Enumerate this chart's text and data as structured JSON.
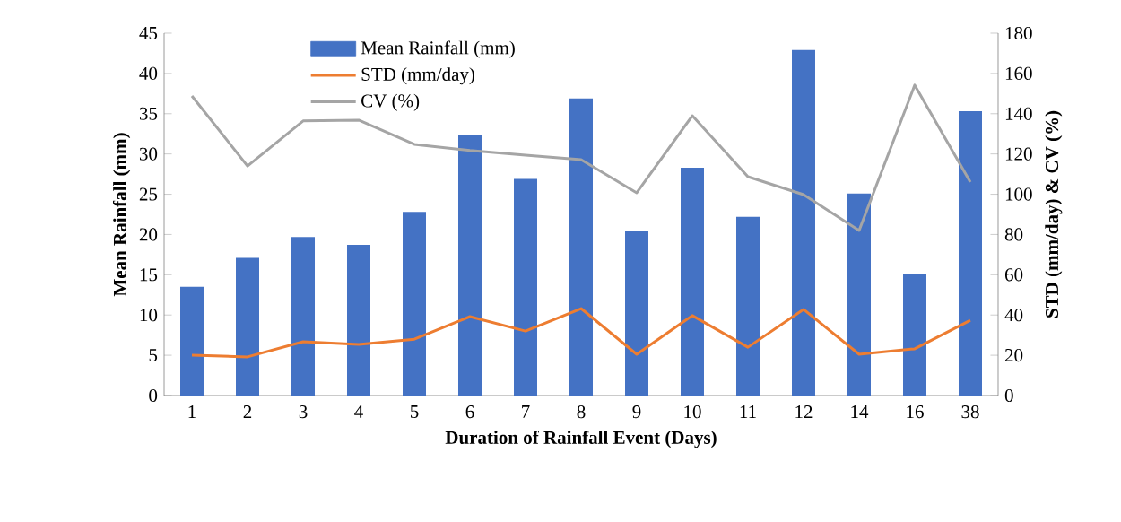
{
  "chart_data": {
    "type": "bar",
    "xlabel": "Duration of Rainfall Event (Days)",
    "ylabel": "Mean Rainfall (mm)",
    "y2label": "STD (mm/day) & CV (%)",
    "categories": [
      "1",
      "2",
      "3",
      "4",
      "5",
      "6",
      "7",
      "8",
      "9",
      "10",
      "11",
      "12",
      "14",
      "16",
      "38"
    ],
    "series": [
      {
        "name": "Mean Rainfall (mm)",
        "color": "#4472c4",
        "values": [
          13.5,
          17.1,
          19.7,
          18.7,
          22.8,
          32.3,
          26.9,
          36.9,
          20.4,
          28.3,
          22.2,
          42.9,
          25.1,
          15.1,
          35.3
        ]
      },
      {
        "name": "STD (mm/day)",
        "type": "line",
        "axis": "y2",
        "color": "#ed7d31",
        "values": [
          20,
          19.2,
          26.7,
          25.4,
          28,
          39.2,
          32,
          43.2,
          20.5,
          39.7,
          24,
          42.8,
          20.5,
          23.2,
          37.4
        ]
      },
      {
        "name": "CV (%)",
        "type": "line",
        "axis": "y2",
        "color": "#a5a5a5",
        "values": [
          148.8,
          114,
          136.4,
          136.8,
          124.8,
          121.7,
          119.4,
          117.2,
          100.7,
          139,
          108.7,
          99.8,
          82,
          154.2,
          106
        ]
      }
    ],
    "ylim": [
      0,
      45
    ],
    "yticks": [
      0,
      5,
      10,
      15,
      20,
      25,
      30,
      35,
      40,
      45
    ],
    "y2lim": [
      0,
      180
    ],
    "y2ticks": [
      0,
      20,
      40,
      60,
      80,
      100,
      120,
      140,
      160,
      180
    ],
    "legend": "top"
  }
}
